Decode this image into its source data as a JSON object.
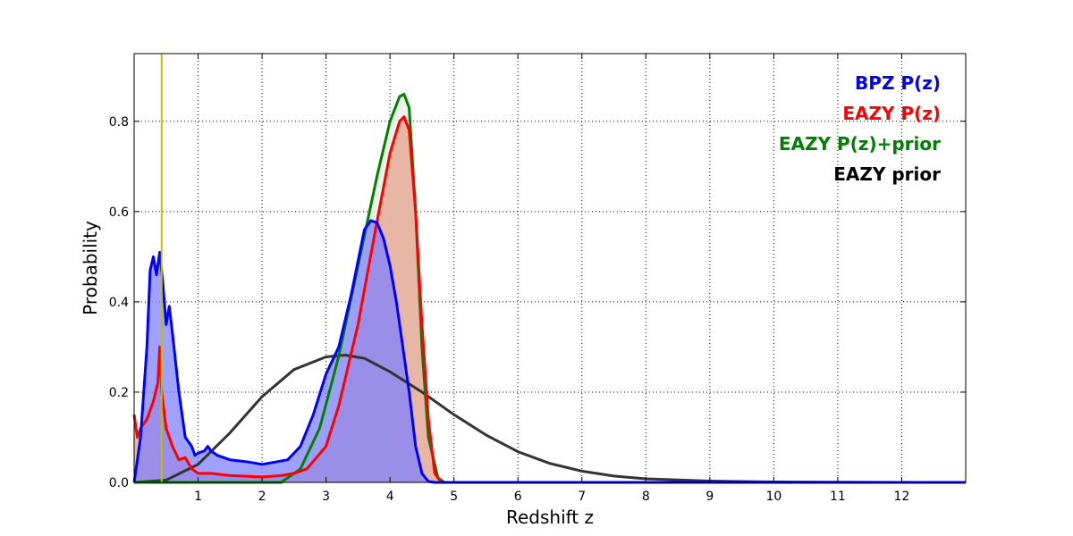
{
  "chart_data": {
    "type": "area",
    "title": "",
    "xlabel": "Redshift z",
    "ylabel": "Probability",
    "xlim": [
      0,
      13
    ],
    "ylim": [
      0,
      0.95
    ],
    "x_ticks": [
      1,
      2,
      3,
      4,
      5,
      6,
      7,
      8,
      9,
      10,
      11,
      12
    ],
    "y_ticks": [
      0.0,
      0.2,
      0.4,
      0.6,
      0.8
    ],
    "x_tick_labels": [
      "1",
      "2",
      "3",
      "4",
      "5",
      "6",
      "7",
      "8",
      "9",
      "10",
      "11",
      "12"
    ],
    "y_tick_labels": [
      "0.0",
      "0.2",
      "0.4",
      "0.6",
      "0.8"
    ],
    "grid": true,
    "legend_position": "top-right",
    "reference_line": {
      "x": 0.43,
      "color": "#bfbf00"
    },
    "series": [
      {
        "name": "EAZY prior",
        "color": "#333333",
        "fill": null,
        "points": [
          [
            0,
            0
          ],
          [
            0.5,
            0.005
          ],
          [
            1,
            0.04
          ],
          [
            1.5,
            0.11
          ],
          [
            2,
            0.19
          ],
          [
            2.5,
            0.25
          ],
          [
            3,
            0.278
          ],
          [
            3.3,
            0.282
          ],
          [
            3.6,
            0.275
          ],
          [
            4,
            0.245
          ],
          [
            4.5,
            0.2
          ],
          [
            5,
            0.15
          ],
          [
            5.5,
            0.105
          ],
          [
            6,
            0.068
          ],
          [
            6.5,
            0.042
          ],
          [
            7,
            0.025
          ],
          [
            7.5,
            0.014
          ],
          [
            8,
            0.008
          ],
          [
            9,
            0.003
          ],
          [
            10,
            0.001
          ],
          [
            12,
            0
          ]
        ]
      },
      {
        "name": "EAZY P(z)+prior",
        "color": "#008000",
        "fill": "#e8f3e8",
        "points": [
          [
            0,
            0
          ],
          [
            2.3,
            0
          ],
          [
            2.6,
            0.03
          ],
          [
            2.9,
            0.12
          ],
          [
            3.2,
            0.28
          ],
          [
            3.5,
            0.48
          ],
          [
            3.8,
            0.68
          ],
          [
            4.0,
            0.8
          ],
          [
            4.15,
            0.855
          ],
          [
            4.22,
            0.86
          ],
          [
            4.3,
            0.83
          ],
          [
            4.4,
            0.6
          ],
          [
            4.5,
            0.3
          ],
          [
            4.6,
            0.1
          ],
          [
            4.75,
            0.01
          ],
          [
            4.85,
            0
          ],
          [
            13,
            0
          ]
        ]
      },
      {
        "name": "EAZY P(z)",
        "color": "#ff0000",
        "fill": "#e6aa98",
        "points": [
          [
            0,
            0.15
          ],
          [
            0.05,
            0.1
          ],
          [
            0.1,
            0.12
          ],
          [
            0.2,
            0.14
          ],
          [
            0.3,
            0.18
          ],
          [
            0.37,
            0.22
          ],
          [
            0.4,
            0.3
          ],
          [
            0.43,
            0.2
          ],
          [
            0.5,
            0.12
          ],
          [
            0.6,
            0.08
          ],
          [
            0.7,
            0.05
          ],
          [
            0.8,
            0.055
          ],
          [
            0.9,
            0.03
          ],
          [
            1.0,
            0.02
          ],
          [
            1.2,
            0.02
          ],
          [
            1.5,
            0.015
          ],
          [
            2.0,
            0.012
          ],
          [
            2.3,
            0.015
          ],
          [
            2.5,
            0.02
          ],
          [
            2.7,
            0.03
          ],
          [
            3.0,
            0.08
          ],
          [
            3.2,
            0.17
          ],
          [
            3.5,
            0.35
          ],
          [
            3.8,
            0.58
          ],
          [
            4.0,
            0.73
          ],
          [
            4.15,
            0.8
          ],
          [
            4.22,
            0.81
          ],
          [
            4.3,
            0.78
          ],
          [
            4.4,
            0.6
          ],
          [
            4.5,
            0.35
          ],
          [
            4.6,
            0.14
          ],
          [
            4.7,
            0.02
          ],
          [
            4.8,
            0
          ],
          [
            13,
            0
          ]
        ]
      },
      {
        "name": "BPZ P(z)",
        "color": "#0000ff",
        "fill": "#8080ff",
        "points": [
          [
            0,
            0
          ],
          [
            0.1,
            0.1
          ],
          [
            0.2,
            0.3
          ],
          [
            0.25,
            0.47
          ],
          [
            0.3,
            0.5
          ],
          [
            0.35,
            0.46
          ],
          [
            0.4,
            0.51
          ],
          [
            0.45,
            0.44
          ],
          [
            0.5,
            0.35
          ],
          [
            0.55,
            0.39
          ],
          [
            0.6,
            0.33
          ],
          [
            0.7,
            0.2
          ],
          [
            0.8,
            0.1
          ],
          [
            0.9,
            0.08
          ],
          [
            0.95,
            0.06
          ],
          [
            1.0,
            0.065
          ],
          [
            1.1,
            0.07
          ],
          [
            1.15,
            0.08
          ],
          [
            1.2,
            0.07
          ],
          [
            1.3,
            0.06
          ],
          [
            1.5,
            0.05
          ],
          [
            1.8,
            0.045
          ],
          [
            2.0,
            0.04
          ],
          [
            2.2,
            0.045
          ],
          [
            2.4,
            0.05
          ],
          [
            2.6,
            0.08
          ],
          [
            2.8,
            0.15
          ],
          [
            3.0,
            0.24
          ],
          [
            3.2,
            0.3
          ],
          [
            3.4,
            0.42
          ],
          [
            3.6,
            0.56
          ],
          [
            3.7,
            0.58
          ],
          [
            3.8,
            0.575
          ],
          [
            3.9,
            0.54
          ],
          [
            4.0,
            0.48
          ],
          [
            4.1,
            0.4
          ],
          [
            4.2,
            0.3
          ],
          [
            4.3,
            0.2
          ],
          [
            4.4,
            0.08
          ],
          [
            4.5,
            0.02
          ],
          [
            4.6,
            0.002
          ],
          [
            4.7,
            0
          ],
          [
            13,
            0
          ]
        ]
      }
    ],
    "legend": [
      {
        "label": "BPZ P(z)",
        "color": "#0000ff"
      },
      {
        "label": "EAZY P(z)",
        "color": "#ff0000"
      },
      {
        "label": "EAZY P(z)+prior",
        "color": "#008000"
      },
      {
        "label": "EAZY prior",
        "color": "#000000"
      }
    ]
  }
}
